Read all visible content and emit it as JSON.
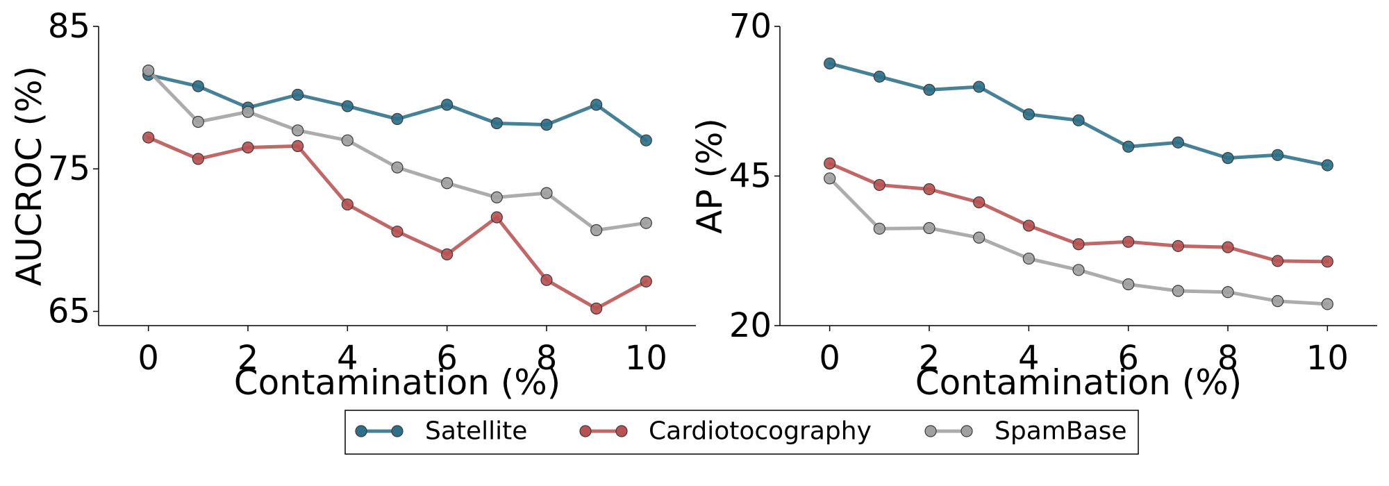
{
  "chart_data": [
    {
      "type": "line",
      "panel": "left",
      "xlabel": "Contamination (%)",
      "ylabel": "AUCROC (%)",
      "xlim": [
        -1,
        11
      ],
      "ylim": [
        64,
        85
      ],
      "xticks": [
        0,
        2,
        4,
        6,
        8,
        10
      ],
      "yticks": [
        65,
        75,
        85
      ],
      "x": [
        0,
        1,
        2,
        3,
        4,
        5,
        6,
        7,
        8,
        9,
        10
      ],
      "series": [
        {
          "name": "Satellite",
          "color": "#2e7088",
          "values": [
            81.6,
            80.8,
            79.3,
            80.2,
            79.4,
            78.5,
            79.5,
            78.2,
            78.1,
            79.5,
            77.0
          ]
        },
        {
          "name": "Cardiotocography",
          "color": "#b85252",
          "values": [
            77.2,
            75.7,
            76.5,
            76.6,
            72.5,
            70.6,
            69.0,
            71.6,
            67.2,
            65.2,
            67.1
          ]
        },
        {
          "name": "SpamBase",
          "color": "#a0a0a0",
          "values": [
            81.9,
            78.3,
            79.0,
            77.7,
            77.0,
            75.1,
            74.0,
            73.0,
            73.3,
            70.7,
            71.2
          ]
        }
      ]
    },
    {
      "type": "line",
      "panel": "right",
      "xlabel": "Contamination (%)",
      "ylabel": "AP (%)",
      "xlim": [
        -1,
        11
      ],
      "ylim": [
        20,
        70
      ],
      "xticks": [
        0,
        2,
        4,
        6,
        8,
        10
      ],
      "yticks": [
        20,
        45,
        70
      ],
      "x": [
        0,
        1,
        2,
        3,
        4,
        5,
        6,
        7,
        8,
        9,
        10
      ],
      "series": [
        {
          "name": "Satellite",
          "color": "#2e7088",
          "values": [
            63.8,
            61.6,
            59.4,
            59.9,
            55.3,
            54.3,
            49.9,
            50.6,
            48.0,
            48.5,
            46.8
          ]
        },
        {
          "name": "Cardiotocography",
          "color": "#b85252",
          "values": [
            47.1,
            43.5,
            42.8,
            40.6,
            36.7,
            33.6,
            34.0,
            33.3,
            33.1,
            30.8,
            30.7
          ]
        },
        {
          "name": "SpamBase",
          "color": "#a0a0a0",
          "values": [
            44.6,
            36.2,
            36.3,
            34.7,
            31.2,
            29.3,
            26.9,
            25.8,
            25.6,
            24.1,
            23.6
          ]
        }
      ]
    }
  ],
  "legend": {
    "items": [
      "Satellite",
      "Cardiotocography",
      "SpamBase"
    ],
    "colors": [
      "#2e7088",
      "#b85252",
      "#a0a0a0"
    ]
  }
}
